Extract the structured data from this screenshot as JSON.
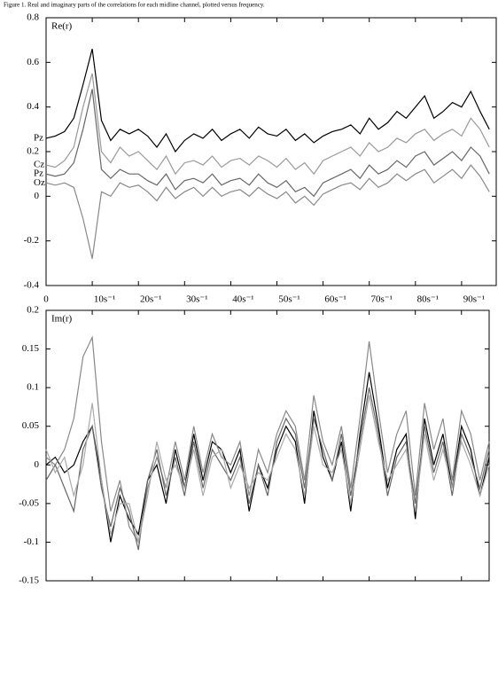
{
  "figure_caption": "Figure 1.  Real and imaginary parts of the correlations for each midline channel, plotted versus frequency.",
  "chart_data": [
    {
      "type": "line",
      "title": "Re(r)",
      "x": [
        0,
        2,
        4,
        6,
        8,
        10,
        12,
        14,
        16,
        18,
        20,
        22,
        24,
        26,
        28,
        30,
        32,
        34,
        36,
        38,
        40,
        42,
        44,
        46,
        48,
        50,
        52,
        54,
        56,
        58,
        60,
        62,
        64,
        66,
        68,
        70,
        72,
        74,
        76,
        78,
        80,
        82,
        84,
        86,
        88,
        90,
        92,
        94,
        96
      ],
      "xlim": [
        0,
        97.5
      ],
      "xticks": [
        0,
        {
          "value": 10,
          "label": "10s⁻¹"
        },
        {
          "value": 20,
          "label": "20s⁻¹"
        },
        {
          "value": 30,
          "label": "30s⁻¹"
        },
        {
          "value": 40,
          "label": "40s⁻¹"
        },
        {
          "value": 50,
          "label": "50s⁻¹"
        },
        {
          "value": 60,
          "label": "60s⁻¹"
        },
        {
          "value": 70,
          "label": "70s⁻¹"
        },
        {
          "value": 80,
          "label": "80s⁻¹"
        },
        {
          "value": 90,
          "label": "90s⁻¹"
        }
      ],
      "ylim": [
        -0.4,
        0.8
      ],
      "yticks": [
        -0.4,
        -0.2,
        0,
        0.2,
        0.4,
        0.6,
        0.8
      ],
      "grid": false,
      "show_xtick_labels": true,
      "series": [
        {
          "name": "Pz",
          "color": "#000000",
          "values": [
            0.26,
            0.27,
            0.29,
            0.35,
            0.5,
            0.66,
            0.34,
            0.25,
            0.3,
            0.28,
            0.3,
            0.27,
            0.22,
            0.28,
            0.2,
            0.25,
            0.28,
            0.26,
            0.3,
            0.25,
            0.28,
            0.3,
            0.26,
            0.31,
            0.28,
            0.27,
            0.3,
            0.25,
            0.28,
            0.24,
            0.27,
            0.29,
            0.3,
            0.32,
            0.28,
            0.35,
            0.3,
            0.33,
            0.38,
            0.35,
            0.4,
            0.45,
            0.35,
            0.38,
            0.42,
            0.4,
            0.47,
            0.38,
            0.3
          ]
        },
        {
          "name": "Cz",
          "color": "#999999",
          "values": [
            0.14,
            0.13,
            0.16,
            0.22,
            0.4,
            0.55,
            0.2,
            0.15,
            0.22,
            0.18,
            0.2,
            0.16,
            0.12,
            0.18,
            0.1,
            0.15,
            0.16,
            0.14,
            0.18,
            0.13,
            0.16,
            0.17,
            0.14,
            0.18,
            0.16,
            0.13,
            0.17,
            0.12,
            0.15,
            0.1,
            0.16,
            0.18,
            0.2,
            0.22,
            0.18,
            0.24,
            0.2,
            0.22,
            0.26,
            0.24,
            0.28,
            0.3,
            0.25,
            0.28,
            0.3,
            0.27,
            0.35,
            0.3,
            0.22
          ]
        },
        {
          "name": "Pz",
          "color": "#666666",
          "values": [
            0.1,
            0.09,
            0.1,
            0.15,
            0.3,
            0.48,
            0.12,
            0.08,
            0.12,
            0.1,
            0.1,
            0.07,
            0.05,
            0.1,
            0.03,
            0.07,
            0.08,
            0.06,
            0.1,
            0.05,
            0.07,
            0.08,
            0.05,
            0.1,
            0.06,
            0.04,
            0.07,
            0.02,
            0.04,
            0.0,
            0.06,
            0.08,
            0.1,
            0.12,
            0.08,
            0.14,
            0.1,
            0.12,
            0.16,
            0.13,
            0.18,
            0.2,
            0.14,
            0.17,
            0.2,
            0.16,
            0.22,
            0.18,
            0.1
          ]
        },
        {
          "name": "Oz",
          "color": "#888888",
          "values": [
            0.06,
            0.05,
            0.06,
            0.04,
            -0.1,
            -0.28,
            0.02,
            0.0,
            0.06,
            0.04,
            0.05,
            0.02,
            -0.02,
            0.04,
            -0.01,
            0.02,
            0.04,
            0.0,
            0.04,
            0.0,
            0.02,
            0.03,
            0.0,
            0.04,
            0.01,
            -0.01,
            0.02,
            -0.03,
            0.0,
            -0.04,
            0.01,
            0.03,
            0.05,
            0.06,
            0.03,
            0.08,
            0.04,
            0.06,
            0.1,
            0.07,
            0.1,
            0.12,
            0.06,
            0.09,
            0.12,
            0.08,
            0.14,
            0.09,
            0.02
          ]
        }
      ]
    },
    {
      "type": "line",
      "title": "Im(r)",
      "x": [
        0,
        2,
        4,
        6,
        8,
        10,
        12,
        14,
        16,
        18,
        20,
        22,
        24,
        26,
        28,
        30,
        32,
        34,
        36,
        38,
        40,
        42,
        44,
        46,
        48,
        50,
        52,
        54,
        56,
        58,
        60,
        62,
        64,
        66,
        68,
        70,
        72,
        74,
        76,
        78,
        80,
        82,
        84,
        86,
        88,
        90,
        92,
        94,
        96
      ],
      "xlim": [
        0,
        96
      ],
      "xticks": [
        0,
        10,
        20,
        30,
        40,
        50,
        60,
        70,
        80,
        90
      ],
      "ylim": [
        -0.15,
        0.2
      ],
      "yticks": [
        -0.15,
        -0.1,
        -0.05,
        0,
        0.05,
        0.1,
        0.15,
        0.2
      ],
      "grid": false,
      "show_xtick_labels": false,
      "series": [
        {
          "color": "#000000",
          "values": [
            0.0,
            0.01,
            -0.01,
            0.0,
            0.03,
            0.05,
            -0.02,
            -0.1,
            -0.04,
            -0.07,
            -0.09,
            -0.02,
            0.0,
            -0.05,
            0.02,
            -0.03,
            0.04,
            -0.02,
            0.03,
            0.02,
            -0.01,
            0.02,
            -0.06,
            0.0,
            -0.03,
            0.02,
            0.05,
            0.03,
            -0.05,
            0.07,
            0.01,
            -0.02,
            0.03,
            -0.06,
            0.04,
            0.12,
            0.05,
            -0.03,
            0.02,
            0.04,
            -0.07,
            0.06,
            0.0,
            0.04,
            -0.03,
            0.05,
            0.02,
            -0.04,
            0.01
          ]
        },
        {
          "color": "#888888",
          "values": [
            0.01,
            0.0,
            0.02,
            0.06,
            0.14,
            0.165,
            0.03,
            -0.06,
            -0.02,
            -0.08,
            -0.1,
            -0.03,
            0.01,
            -0.03,
            0.03,
            -0.02,
            0.05,
            -0.01,
            0.04,
            0.01,
            0.0,
            0.03,
            -0.04,
            0.02,
            -0.01,
            0.04,
            0.07,
            0.05,
            -0.02,
            0.09,
            0.03,
            0.0,
            0.05,
            -0.03,
            0.06,
            0.16,
            0.07,
            -0.01,
            0.04,
            0.07,
            -0.04,
            0.08,
            0.02,
            0.06,
            -0.02,
            0.07,
            0.04,
            -0.02,
            0.03
          ]
        },
        {
          "color": "#666666",
          "values": [
            -0.02,
            0.0,
            -0.03,
            -0.06,
            0.02,
            0.05,
            -0.03,
            -0.08,
            -0.03,
            -0.06,
            -0.11,
            -0.02,
            0.02,
            -0.04,
            0.01,
            -0.04,
            0.03,
            -0.03,
            0.02,
            0.0,
            -0.02,
            0.01,
            -0.05,
            0.0,
            -0.04,
            0.03,
            0.06,
            0.04,
            -0.03,
            0.06,
            0.02,
            -0.02,
            0.04,
            -0.04,
            0.03,
            0.1,
            0.04,
            -0.04,
            0.01,
            0.03,
            -0.05,
            0.05,
            -0.01,
            0.03,
            -0.04,
            0.04,
            0.01,
            -0.03,
            0.02
          ]
        },
        {
          "color": "#aaaaaa",
          "values": [
            0.02,
            -0.01,
            0.01,
            -0.04,
            0.0,
            0.08,
            -0.02,
            -0.09,
            -0.05,
            -0.05,
            -0.1,
            -0.04,
            0.03,
            -0.02,
            0.0,
            -0.03,
            0.02,
            -0.04,
            0.01,
            0.02,
            -0.03,
            0.0,
            -0.03,
            -0.01,
            -0.02,
            0.01,
            0.04,
            0.02,
            -0.04,
            0.05,
            0.0,
            -0.01,
            0.02,
            -0.05,
            0.02,
            0.09,
            0.03,
            -0.02,
            0.0,
            0.02,
            -0.06,
            0.04,
            -0.02,
            0.02,
            -0.03,
            0.03,
            0.0,
            -0.04,
            0.0
          ]
        }
      ]
    }
  ]
}
